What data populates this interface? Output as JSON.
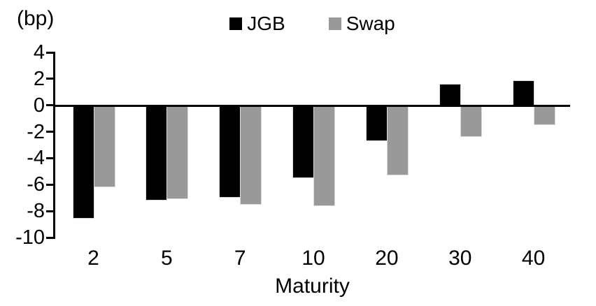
{
  "chart_data": {
    "type": "bar",
    "title": "",
    "unit_label": "(bp)",
    "xlabel": "Maturity",
    "ylabel": "",
    "categories": [
      "2",
      "5",
      "7",
      "10",
      "20",
      "30",
      "40"
    ],
    "series": [
      {
        "name": "JGB",
        "color": "#000000",
        "values": [
          -8.6,
          -7.2,
          -7.0,
          -5.5,
          -2.7,
          1.6,
          1.9
        ]
      },
      {
        "name": "Swap",
        "color": "#999999",
        "values": [
          -6.2,
          -7.1,
          -7.5,
          -7.6,
          -5.3,
          -2.4,
          -1.5
        ]
      }
    ],
    "ylim": [
      -10,
      4
    ],
    "yticks": [
      4,
      2,
      0,
      -2,
      -4,
      -6,
      -8,
      -10
    ],
    "legend_position": "top-center",
    "grid": false,
    "zero_line": true,
    "bar_border_color": "#dcdcdc",
    "axis_color": "#000000"
  }
}
